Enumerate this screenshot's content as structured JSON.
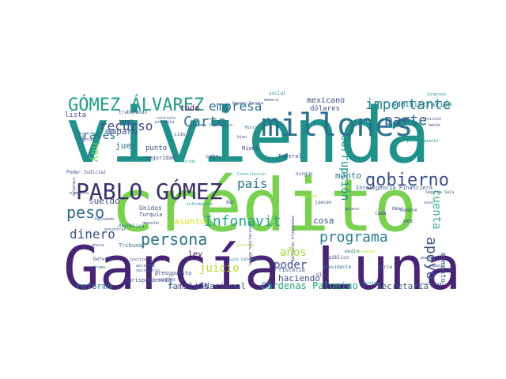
{
  "word_cloud": {
    "colors": {
      "purple": "#440154",
      "indigo": "#3b528b",
      "teal": "#21918c",
      "green": "#5ec962",
      "yellow": "#c8d22c",
      "blue": "#31688e"
    },
    "words": [
      {
        "text": "vivienda",
        "color": "#21918c"
      },
      {
        "text": "crédito",
        "color": "#7ad151"
      },
      {
        "text": "García Luna",
        "color": "#482475"
      },
      {
        "text": "millones",
        "color": "#2c728e"
      },
      {
        "text": "PABLO GÓMEZ",
        "color": "#3b2f6e"
      },
      {
        "text": "GÓMEZ ÁLVAREZ",
        "color": "#1f9e89"
      },
      {
        "text": "importante",
        "color": "#26828e"
      },
      {
        "text": "gobierno",
        "color": "#3b528b"
      },
      {
        "text": "parte",
        "color": "#33638d"
      },
      {
        "text": "Corte",
        "color": "#2c728e"
      },
      {
        "text": "recurso",
        "color": "#3e4a89"
      },
      {
        "text": "empresa",
        "color": "#2f6b8e"
      },
      {
        "text": "hoy",
        "color": "#6ccd5a"
      },
      {
        "text": "país",
        "color": "#2a788e"
      },
      {
        "text": "través",
        "color": "#2c728e"
      },
      {
        "text": "peso",
        "color": "#31688e"
      },
      {
        "text": "dinero",
        "color": "#3b528b"
      },
      {
        "text": "persona",
        "color": "#2c728e"
      },
      {
        "text": "Infonavit",
        "color": "#22a884"
      },
      {
        "text": "programa",
        "color": "#287d8e"
      },
      {
        "text": "apoyo",
        "color": "#3b528b"
      },
      {
        "text": "corrupción",
        "color": "#1f968b"
      },
      {
        "text": "cuenta",
        "color": "#35b779"
      },
      {
        "text": "años",
        "color": "#a0da39"
      },
      {
        "text": "poder",
        "color": "#3e4a89"
      },
      {
        "text": "juicio",
        "color": "#b5de2b"
      },
      {
        "text": "Cárdenas Palomino",
        "color": "#20a386"
      },
      {
        "text": "Secretaría",
        "color": "#355f8d"
      },
      {
        "text": "reforma",
        "color": "#2a788e"
      },
      {
        "text": "familias",
        "color": "#414487"
      },
      {
        "text": "Nacional",
        "color": "#3b528b"
      },
      {
        "text": "haciendo",
        "color": "#3e4a89"
      },
      {
        "text": "ley",
        "color": "#440154"
      },
      {
        "text": "asunto",
        "color": "#d8e219"
      },
      {
        "text": "cosa",
        "color": "#3b528b"
      },
      {
        "text": "monto",
        "color": "#2c728e"
      },
      {
        "text": "juez",
        "color": "#2c728e"
      },
      {
        "text": "sueldo",
        "color": "#3e4a89"
      },
      {
        "text": "amparo",
        "color": "#3b528b"
      },
      {
        "text": "toda",
        "color": "#440154"
      },
      {
        "text": "mexicano",
        "color": "#3e4a89"
      },
      {
        "text": "dólares",
        "color": "#3b528b"
      },
      {
        "text": "administración",
        "color": "#2a788e"
      },
      {
        "text": "lista",
        "color": "#3b528b"
      },
      {
        "text": "punto",
        "color": "#3e4a89"
      },
      {
        "text": "seguridad",
        "color": "#3b528b"
      },
      {
        "text": "cabo",
        "color": "#3b528b"
      },
      {
        "text": "Miami",
        "color": "#3e4a89"
      },
      {
        "text": "Unidos",
        "color": "#3b528b"
      },
      {
        "text": "Turquía",
        "color": "#3e4a89"
      },
      {
        "text": "República",
        "color": "#2a788e"
      },
      {
        "text": "Tribunal",
        "color": "#2c728e"
      },
      {
        "text": "presupuesto",
        "color": "#3e4a89"
      },
      {
        "text": "jurisprudencia",
        "color": "#3b528b"
      },
      {
        "text": "cuatro",
        "color": "#3e4a89"
      },
      {
        "text": "civil",
        "color": "#2a788e"
      },
      {
        "text": "fiscalía",
        "color": "#3b528b"
      },
      {
        "text": "presidente",
        "color": "#2a788e"
      },
      {
        "text": "público",
        "color": "#3e4a89"
      },
      {
        "text": "jueces",
        "color": "#3b528b"
      },
      {
        "text": "vez",
        "color": "#414487"
      },
      {
        "text": "nombre",
        "color": "#3b528b"
      },
      {
        "text": "cada",
        "color": "#414487"
      },
      {
        "text": "momento",
        "color": "#3b528b"
      },
      {
        "text": "Inteligencia Financiera",
        "color": "#3b528b"
      },
      {
        "text": "Segunda Sala",
        "color": "#31688e"
      },
      {
        "text": "Poder Judicial",
        "color": "#3e4a89"
      },
      {
        "text": "ningún",
        "color": "#3b528b"
      },
      {
        "text": "Federal",
        "color": "#3b528b"
      },
      {
        "text": "dar",
        "color": "#3e4a89"
      },
      {
        "text": "trabajando",
        "color": "#3e4a89"
      },
      {
        "text": "total",
        "color": "#414487"
      },
      {
        "text": "contrato",
        "color": "#2a788e"
      },
      {
        "text": "Genaro García",
        "color": "#3e4a89"
      },
      {
        "text": "sistema financiero",
        "color": "#31688e"
      },
      {
        "text": "presenta",
        "color": "#3b528b"
      },
      {
        "text": "social",
        "color": "#1f968b"
      },
      {
        "text": "manera",
        "color": "#3b528b"
      },
      {
        "text": "Congreso",
        "color": "#1f968b"
      },
      {
        "text": "revisión",
        "color": "#3b528b"
      },
      {
        "text": "hecho",
        "color": "#3e4a89"
      },
      {
        "text": "procedimiento",
        "color": "#1f968b"
      },
      {
        "text": "UIF",
        "color": "#3b528b"
      },
      {
        "text": "medio",
        "color": "#2a788e"
      },
      {
        "text": "testigo",
        "color": "#1f968b"
      },
      {
        "text": "colegiado",
        "color": "#3b528b"
      },
      {
        "text": "pueden",
        "color": "#3b528b"
      },
      {
        "text": "rezago habitacional",
        "color": "#3e4a89"
      },
      {
        "text": "personas bloqueadas",
        "color": "#414487"
      },
      {
        "text": "Luis Cárdenas",
        "color": "#2a788e"
      },
      {
        "text": "información",
        "color": "#1f968b"
      },
      {
        "text": "derecho",
        "color": "#3e4a89"
      },
      {
        "text": "acciones",
        "color": "#3e4a89"
      },
      {
        "text": "instituto",
        "color": "#3b528b"
      },
      {
        "text": "secretario",
        "color": "#3b528b"
      },
      {
        "text": "Defensa",
        "color": "#3b528b"
      },
      {
        "text": "trama",
        "color": "#2a788e"
      },
      {
        "text": "elemento",
        "color": "#3b528b"
      },
      {
        "text": "inmueble",
        "color": "#3e4a89"
      },
      {
        "text": "nunca",
        "color": "#3e4a89"
      },
      {
        "text": "casa",
        "color": "#3e4a89"
      },
      {
        "text": "cido",
        "color": "#3b528b"
      },
      {
        "text": "Florida",
        "color": "#22a884"
      },
      {
        "text": "Constitución",
        "color": "#22a884"
      },
      {
        "text": "Ministro",
        "color": "#2a788e"
      },
      {
        "text": "bien",
        "color": "#3b528b"
      },
      {
        "text": "quiero",
        "color": "#3e4a89"
      },
      {
        "text": "Omar",
        "color": "#3e4a89"
      },
      {
        "text": "serie",
        "color": "#3b528b"
      },
      {
        "text": "hablando",
        "color": "#3e4a89"
      },
      {
        "text": "ahora",
        "color": "#3b528b"
      },
      {
        "text": "nuevo",
        "color": "#3e4a89"
      },
      {
        "text": "usos",
        "color": "#3e4a89"
      },
      {
        "text": "encontrar",
        "color": "#3e4a89"
      },
      {
        "text": "proceso",
        "color": "#b5de2b"
      },
      {
        "text": "Vivienda",
        "color": "#b5de2b"
      },
      {
        "text": "persona",
        "color": "#b5de2b"
      }
    ]
  }
}
